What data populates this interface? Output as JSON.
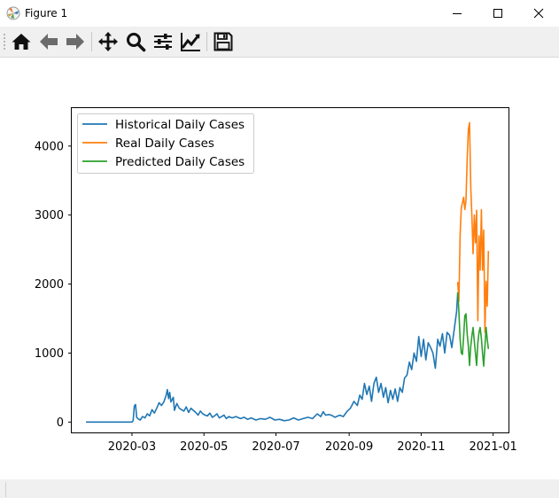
{
  "window": {
    "title": "Figure 1",
    "icon": "matplotlib-icon"
  },
  "window_controls": [
    "minimize-icon",
    "maximize-icon",
    "close-icon"
  ],
  "toolbar": {
    "buttons": [
      {
        "name": "home-button",
        "icon": "home-icon"
      },
      {
        "name": "back-button",
        "icon": "arrow-left-icon"
      },
      {
        "name": "forward-button",
        "icon": "arrow-right-icon"
      },
      {
        "name": "pan-button",
        "icon": "move-icon"
      },
      {
        "name": "zoom-button",
        "icon": "zoom-icon"
      },
      {
        "name": "subplots-button",
        "icon": "sliders-icon"
      },
      {
        "name": "customize-button",
        "icon": "line-chart-icon"
      },
      {
        "name": "save-button",
        "icon": "save-icon"
      }
    ]
  },
  "colors": {
    "historical": "#1f77b4",
    "real": "#ff7f0e",
    "predicted": "#2ca02c"
  },
  "chart_data": {
    "type": "line",
    "title": "",
    "xlabel": "",
    "ylabel": "",
    "legend_position": "upper-left",
    "grid": false,
    "xlim": [
      "2020-01-10",
      "2021-01-14"
    ],
    "ylim": [
      -150,
      4550
    ],
    "x_ticks": [
      "2020-03",
      "2020-05",
      "2020-07",
      "2020-09",
      "2020-11",
      "2021-01"
    ],
    "y_ticks": [
      0,
      1000,
      2000,
      3000,
      4000
    ],
    "series": [
      {
        "name": "Historical Daily Cases",
        "color": "#1f77b4",
        "points": [
          [
            "2020-01-22",
            0
          ],
          [
            "2020-02-01",
            0
          ],
          [
            "2020-02-10",
            0
          ],
          [
            "2020-02-20",
            0
          ],
          [
            "2020-02-28",
            0
          ],
          [
            "2020-03-01",
            2
          ],
          [
            "2020-03-02",
            20
          ],
          [
            "2020-03-03",
            230
          ],
          [
            "2020-03-04",
            255
          ],
          [
            "2020-03-05",
            70
          ],
          [
            "2020-03-06",
            50
          ],
          [
            "2020-03-08",
            30
          ],
          [
            "2020-03-10",
            80
          ],
          [
            "2020-03-12",
            60
          ],
          [
            "2020-03-14",
            120
          ],
          [
            "2020-03-16",
            90
          ],
          [
            "2020-03-18",
            180
          ],
          [
            "2020-03-20",
            130
          ],
          [
            "2020-03-22",
            200
          ],
          [
            "2020-03-24",
            280
          ],
          [
            "2020-03-26",
            240
          ],
          [
            "2020-03-28",
            290
          ],
          [
            "2020-03-30",
            390
          ],
          [
            "2020-03-31",
            470
          ],
          [
            "2020-04-01",
            340
          ],
          [
            "2020-04-02",
            430
          ],
          [
            "2020-04-03",
            290
          ],
          [
            "2020-04-05",
            360
          ],
          [
            "2020-04-06",
            170
          ],
          [
            "2020-04-08",
            270
          ],
          [
            "2020-04-10",
            200
          ],
          [
            "2020-04-12",
            180
          ],
          [
            "2020-04-14",
            160
          ],
          [
            "2020-04-16",
            220
          ],
          [
            "2020-04-18",
            140
          ],
          [
            "2020-04-20",
            200
          ],
          [
            "2020-04-22",
            170
          ],
          [
            "2020-04-24",
            140
          ],
          [
            "2020-04-26",
            100
          ],
          [
            "2020-04-28",
            160
          ],
          [
            "2020-04-30",
            120
          ],
          [
            "2020-05-02",
            100
          ],
          [
            "2020-05-04",
            90
          ],
          [
            "2020-05-06",
            130
          ],
          [
            "2020-05-08",
            70
          ],
          [
            "2020-05-10",
            90
          ],
          [
            "2020-05-12",
            120
          ],
          [
            "2020-05-14",
            60
          ],
          [
            "2020-05-16",
            80
          ],
          [
            "2020-05-18",
            100
          ],
          [
            "2020-05-20",
            50
          ],
          [
            "2020-05-22",
            80
          ],
          [
            "2020-05-25",
            60
          ],
          [
            "2020-05-28",
            80
          ],
          [
            "2020-06-01",
            50
          ],
          [
            "2020-06-04",
            70
          ],
          [
            "2020-06-07",
            40
          ],
          [
            "2020-06-10",
            60
          ],
          [
            "2020-06-14",
            30
          ],
          [
            "2020-06-18",
            50
          ],
          [
            "2020-06-22",
            40
          ],
          [
            "2020-06-26",
            70
          ],
          [
            "2020-06-30",
            30
          ],
          [
            "2020-07-04",
            40
          ],
          [
            "2020-07-08",
            20
          ],
          [
            "2020-07-12",
            30
          ],
          [
            "2020-07-16",
            60
          ],
          [
            "2020-07-20",
            30
          ],
          [
            "2020-07-24",
            50
          ],
          [
            "2020-07-28",
            70
          ],
          [
            "2020-08-01",
            50
          ],
          [
            "2020-08-05",
            120
          ],
          [
            "2020-08-08",
            80
          ],
          [
            "2020-08-10",
            150
          ],
          [
            "2020-08-12",
            100
          ],
          [
            "2020-08-15",
            110
          ],
          [
            "2020-08-18",
            90
          ],
          [
            "2020-08-20",
            70
          ],
          [
            "2020-08-24",
            100
          ],
          [
            "2020-08-27",
            80
          ],
          [
            "2020-08-30",
            150
          ],
          [
            "2020-09-02",
            200
          ],
          [
            "2020-09-05",
            300
          ],
          [
            "2020-09-08",
            240
          ],
          [
            "2020-09-10",
            390
          ],
          [
            "2020-09-12",
            330
          ],
          [
            "2020-09-14",
            560
          ],
          [
            "2020-09-16",
            400
          ],
          [
            "2020-09-18",
            520
          ],
          [
            "2020-09-20",
            300
          ],
          [
            "2020-09-22",
            560
          ],
          [
            "2020-09-24",
            650
          ],
          [
            "2020-09-26",
            430
          ],
          [
            "2020-09-28",
            560
          ],
          [
            "2020-09-30",
            360
          ],
          [
            "2020-10-02",
            500
          ],
          [
            "2020-10-04",
            280
          ],
          [
            "2020-10-06",
            460
          ],
          [
            "2020-10-08",
            330
          ],
          [
            "2020-10-10",
            480
          ],
          [
            "2020-10-12",
            300
          ],
          [
            "2020-10-14",
            500
          ],
          [
            "2020-10-16",
            430
          ],
          [
            "2020-10-18",
            640
          ],
          [
            "2020-10-20",
            680
          ],
          [
            "2020-10-22",
            870
          ],
          [
            "2020-10-24",
            760
          ],
          [
            "2020-10-26",
            1000
          ],
          [
            "2020-10-28",
            880
          ],
          [
            "2020-10-30",
            1240
          ],
          [
            "2020-11-01",
            950
          ],
          [
            "2020-11-03",
            1200
          ],
          [
            "2020-11-05",
            900
          ],
          [
            "2020-11-07",
            1150
          ],
          [
            "2020-11-09",
            1080
          ],
          [
            "2020-11-11",
            1000
          ],
          [
            "2020-11-13",
            780
          ],
          [
            "2020-11-15",
            1200
          ],
          [
            "2020-11-17",
            1100
          ],
          [
            "2020-11-19",
            1280
          ],
          [
            "2020-11-21",
            1000
          ],
          [
            "2020-11-23",
            1300
          ],
          [
            "2020-11-25",
            1260
          ],
          [
            "2020-11-27",
            1080
          ],
          [
            "2020-11-29",
            1340
          ],
          [
            "2020-12-01",
            1600
          ],
          [
            "2020-12-02",
            1880
          ]
        ]
      },
      {
        "name": "Real Daily Cases",
        "color": "#ff7f0e",
        "points": [
          [
            "2020-12-02",
            2030
          ],
          [
            "2020-12-03",
            1750
          ],
          [
            "2020-12-04",
            2720
          ],
          [
            "2020-12-05",
            3100
          ],
          [
            "2020-12-07",
            3260
          ],
          [
            "2020-12-08",
            3080
          ],
          [
            "2020-12-09",
            3210
          ],
          [
            "2020-12-10",
            3830
          ],
          [
            "2020-12-11",
            4240
          ],
          [
            "2020-12-12",
            4340
          ],
          [
            "2020-12-13",
            3400
          ],
          [
            "2020-12-14",
            2980
          ],
          [
            "2020-12-15",
            2440
          ],
          [
            "2020-12-16",
            3000
          ],
          [
            "2020-12-17",
            2600
          ],
          [
            "2020-12-18",
            3070
          ],
          [
            "2020-12-19",
            1470
          ],
          [
            "2020-12-20",
            2700
          ],
          [
            "2020-12-21",
            2200
          ],
          [
            "2020-12-22",
            3080
          ],
          [
            "2020-12-23",
            2200
          ],
          [
            "2020-12-24",
            2780
          ],
          [
            "2020-12-25",
            1300
          ],
          [
            "2020-12-26",
            2040
          ],
          [
            "2020-12-27",
            1680
          ],
          [
            "2020-12-28",
            2480
          ]
        ]
      },
      {
        "name": "Predicted Daily Cases",
        "color": "#2ca02c",
        "points": [
          [
            "2020-12-02",
            1880
          ],
          [
            "2020-12-03",
            1600
          ],
          [
            "2020-12-04",
            1200
          ],
          [
            "2020-12-05",
            1000
          ],
          [
            "2020-12-06",
            980
          ],
          [
            "2020-12-07",
            1250
          ],
          [
            "2020-12-08",
            1540
          ],
          [
            "2020-12-09",
            1570
          ],
          [
            "2020-12-10",
            1270
          ],
          [
            "2020-12-11",
            1100
          ],
          [
            "2020-12-12",
            820
          ],
          [
            "2020-12-13",
            1100
          ],
          [
            "2020-12-14",
            1250
          ],
          [
            "2020-12-15",
            1370
          ],
          [
            "2020-12-16",
            1170
          ],
          [
            "2020-12-17",
            1000
          ],
          [
            "2020-12-18",
            820
          ],
          [
            "2020-12-19",
            1150
          ],
          [
            "2020-12-20",
            1300
          ],
          [
            "2020-12-21",
            1370
          ],
          [
            "2020-12-22",
            1210
          ],
          [
            "2020-12-23",
            1000
          ],
          [
            "2020-12-24",
            810
          ],
          [
            "2020-12-25",
            1100
          ],
          [
            "2020-12-26",
            1370
          ],
          [
            "2020-12-27",
            1200
          ],
          [
            "2020-12-28",
            1060
          ]
        ]
      }
    ]
  }
}
